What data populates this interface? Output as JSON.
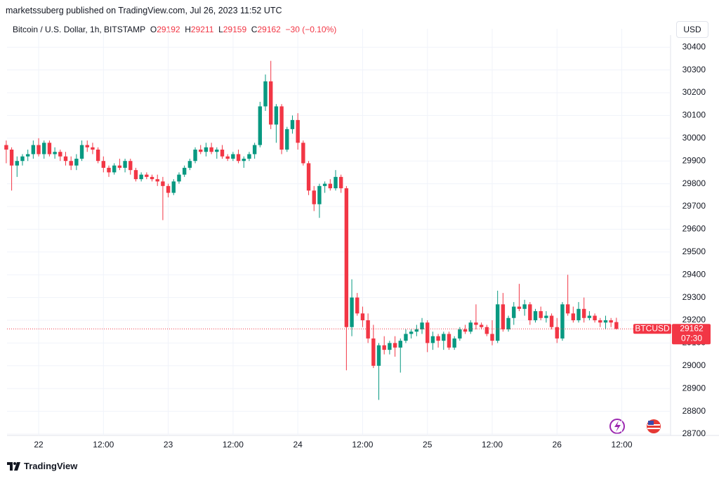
{
  "header": {
    "publisher": "marketssuberg published on TradingView.com, Jul 26, 2023 11:52 UTC",
    "symbol": "Bitcoin / U.S. Dollar, 1h, BITSTAMP",
    "ohlc": [
      {
        "label": "O",
        "value": "29192"
      },
      {
        "label": "H",
        "value": "29211"
      },
      {
        "label": "L",
        "value": "29159"
      },
      {
        "label": "C",
        "value": "29162"
      }
    ],
    "change": "−30 (−0.10%)"
  },
  "currency": "USD",
  "footer": {
    "brand": "TradingView"
  },
  "chart_data": {
    "type": "candlestick",
    "up_color": "#089981",
    "down_color": "#f23645",
    "grid": true,
    "categories": [
      null,
      null,
      null,
      null,
      null,
      null,
      "22",
      null,
      null,
      null,
      null,
      null,
      null,
      null,
      null,
      null,
      null,
      null,
      "12:00",
      null,
      null,
      null,
      null,
      null,
      null,
      null,
      null,
      null,
      null,
      null,
      "23",
      null,
      null,
      null,
      null,
      null,
      null,
      null,
      null,
      null,
      null,
      null,
      "12:00",
      null,
      null,
      null,
      null,
      null,
      null,
      null,
      null,
      null,
      null,
      null,
      "24",
      null,
      null,
      null,
      null,
      null,
      null,
      null,
      null,
      null,
      null,
      null,
      "12:00",
      null,
      null,
      null,
      null,
      null,
      null,
      null,
      null,
      null,
      null,
      null,
      "25",
      null,
      null,
      null,
      null,
      null,
      null,
      null,
      null,
      null,
      null,
      null,
      "12:00",
      null,
      null,
      null,
      null,
      null,
      null,
      null,
      null,
      null,
      null,
      null,
      "26",
      null,
      null,
      null,
      null,
      null,
      null,
      null,
      null,
      null,
      null,
      null,
      "12:00"
    ],
    "open": [
      29970,
      29950,
      29880,
      29900,
      29920,
      29930,
      29970,
      29930,
      29980,
      29930,
      29940,
      29920,
      29900,
      29880,
      29910,
      29970,
      29960,
      29950,
      29900,
      29870,
      29850,
      29880,
      29870,
      29900,
      29860,
      29820,
      29840,
      29830,
      29820,
      29810,
      29790,
      29760,
      29810,
      29840,
      29870,
      29900,
      29950,
      29940,
      29960,
      29940,
      29950,
      29920,
      29910,
      29930,
      29900,
      29910,
      29930,
      29970,
      30140,
      30250,
      30060,
      30140,
      29950,
      30040,
      30080,
      29980,
      29890,
      29770,
      29710,
      29790,
      29800,
      29780,
      29830,
      29780,
      29170,
      29300,
      29230,
      29200,
      29120,
      29000,
      29090,
      29070,
      29100,
      29080,
      29110,
      29140,
      29150,
      29160,
      29190,
      29100,
      29130,
      29110,
      29140,
      29080,
      29120,
      29160,
      29150,
      29190,
      29180,
      29170,
      29140,
      29110,
      29270,
      29160,
      29210,
      29260,
      29250,
      29270,
      29200,
      29240,
      29210,
      29220,
      29170,
      29120,
      29270,
      29230,
      29200,
      29250,
      29210,
      29220,
      29200,
      29190,
      29200,
      29192,
      null
    ],
    "high": [
      29990,
      29960,
      29920,
      29930,
      29950,
      29990,
      30000,
      29990,
      29990,
      29960,
      29950,
      29940,
      29920,
      29930,
      29990,
      29990,
      29980,
      29960,
      29920,
      29880,
      29890,
      29910,
      29910,
      29910,
      29870,
      29850,
      29850,
      29840,
      29840,
      29830,
      29800,
      29820,
      29850,
      29880,
      29910,
      29960,
      29970,
      29980,
      29980,
      29960,
      29970,
      29930,
      29940,
      29950,
      29920,
      29940,
      29980,
      30160,
      30280,
      30340,
      30150,
      30150,
      30050,
      30100,
      30110,
      29990,
      29900,
      29790,
      29800,
      29810,
      29820,
      29860,
      29840,
      29790,
      29380,
      29320,
      29260,
      29230,
      29180,
      29100,
      29130,
      29110,
      29130,
      29120,
      29160,
      29160,
      29180,
      29210,
      29200,
      29150,
      29140,
      29150,
      29150,
      29130,
      29170,
      29180,
      29200,
      29270,
      29190,
      29180,
      29200,
      29330,
      29320,
      29220,
      29280,
      29360,
      29290,
      29280,
      29250,
      29260,
      29240,
      29230,
      29210,
      29280,
      29400,
      29260,
      29280,
      29300,
      29240,
      29230,
      29210,
      29220,
      29210,
      29211,
      null
    ],
    "low": [
      29890,
      29770,
      29830,
      29880,
      29900,
      29910,
      29920,
      29910,
      29920,
      29910,
      29900,
      29880,
      29860,
      29860,
      29900,
      29940,
      29930,
      29890,
      29850,
      29830,
      29840,
      29860,
      29850,
      29840,
      29810,
      29810,
      29820,
      29810,
      29790,
      29640,
      29740,
      29750,
      29800,
      29830,
      29860,
      29890,
      29930,
      29920,
      29930,
      29910,
      29910,
      29900,
      29900,
      29890,
      29870,
      29900,
      29910,
      29960,
      30120,
      30040,
      29980,
      29930,
      29940,
      30020,
      29950,
      29880,
      29750,
      29680,
      29650,
      29760,
      29770,
      29770,
      29760,
      28980,
      29130,
      29220,
      29170,
      29100,
      28990,
      28850,
      29050,
      29050,
      29040,
      28970,
      29100,
      29120,
      29130,
      29140,
      29060,
      29070,
      29080,
      29070,
      29070,
      29070,
      29110,
      29140,
      29140,
      29160,
      29160,
      29130,
      29090,
      29100,
      29150,
      29150,
      29180,
      29240,
      29220,
      29180,
      29190,
      29200,
      29190,
      29160,
      29100,
      29110,
      29220,
      29190,
      29190,
      29190,
      29200,
      29190,
      29170,
      29160,
      29170,
      29159,
      null
    ],
    "close": [
      29950,
      29880,
      29900,
      29920,
      29930,
      29970,
      29930,
      29980,
      29930,
      29940,
      29920,
      29900,
      29880,
      29910,
      29970,
      29960,
      29950,
      29900,
      29870,
      29850,
      29880,
      29870,
      29900,
      29860,
      29820,
      29840,
      29830,
      29820,
      29810,
      29790,
      29760,
      29810,
      29840,
      29870,
      29900,
      29950,
      29940,
      29960,
      29940,
      29950,
      29920,
      29910,
      29930,
      29900,
      29910,
      29930,
      29970,
      30140,
      30250,
      30060,
      30140,
      29950,
      30040,
      30080,
      29980,
      29890,
      29770,
      29710,
      29790,
      29800,
      29780,
      29830,
      29780,
      29170,
      29300,
      29230,
      29200,
      29120,
      29000,
      29090,
      29070,
      29100,
      29080,
      29110,
      29140,
      29150,
      29160,
      29190,
      29100,
      29130,
      29110,
      29140,
      29080,
      29120,
      29160,
      29150,
      29190,
      29180,
      29170,
      29140,
      29110,
      29270,
      29160,
      29210,
      29260,
      29250,
      29270,
      29200,
      29240,
      29210,
      29220,
      29170,
      29120,
      29270,
      29230,
      29200,
      29250,
      29210,
      29220,
      29200,
      29190,
      29200,
      29190,
      29162,
      null
    ],
    "ylim": [
      28700,
      30450
    ],
    "yticks": [
      28700,
      28800,
      28900,
      29000,
      29100,
      29200,
      29300,
      29400,
      29500,
      29600,
      29700,
      29800,
      29900,
      30000,
      30100,
      30200,
      30300,
      30400
    ],
    "last_price": {
      "symbol": "BTCUSD",
      "value": 29162,
      "countdown": "07:30",
      "color": "#f23645"
    }
  }
}
